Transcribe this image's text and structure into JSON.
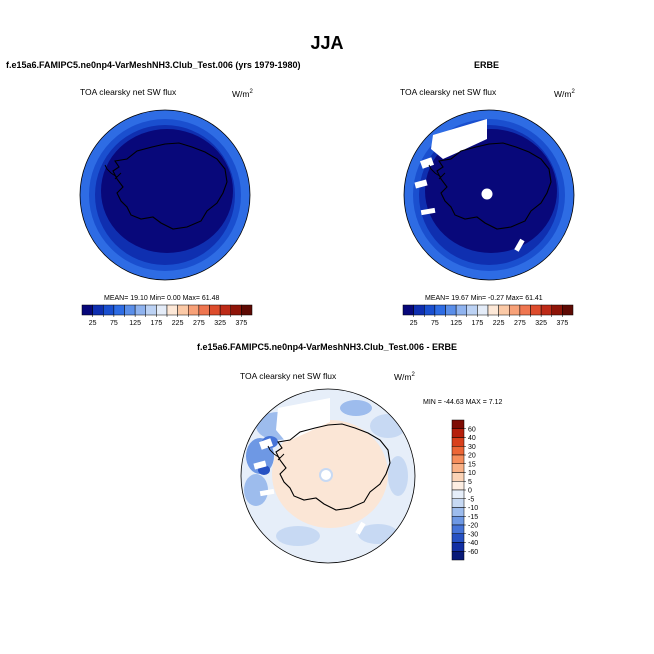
{
  "page": {
    "main_title": "JJA",
    "left_title": "f.e15a6.FAMIPC5.ne0np4-VarMeshNH3.Club_Test.006 (yrs 1979-1980)",
    "right_title": "ERBE",
    "diff_title": "f.e15a6.FAMIPC5.ne0np4-VarMeshNH3.Club_Test.006 - ERBE"
  },
  "chart_data": [
    {
      "type": "heatmap",
      "panel": "model",
      "title": "TOA clearsky net SW flux",
      "units_base": "W/m",
      "units_sup": "2",
      "stats_text": "MEAN=  19.10  Min=   0.00  Max=  61.48",
      "stats": {
        "mean": 19.1,
        "min": 0.0,
        "max": 61.48
      },
      "colorbar": {
        "orientation": "horizontal",
        "tick_labels": [
          "25",
          "75",
          "125",
          "175",
          "225",
          "275",
          "325",
          "375"
        ],
        "levels": [
          25,
          50,
          75,
          100,
          125,
          150,
          175,
          200,
          225,
          250,
          275,
          300,
          325,
          350,
          375
        ],
        "colors": [
          "#08087a",
          "#0f2fb0",
          "#1a4fcf",
          "#2e6ce4",
          "#5a8ee9",
          "#8fb3ef",
          "#bcd2f4",
          "#e4ecf8",
          "#fde8d7",
          "#fbc9a6",
          "#f7a178",
          "#ef7650",
          "#dd4c2c",
          "#bd2a17",
          "#8e1408",
          "#5e0a04"
        ]
      }
    },
    {
      "type": "heatmap",
      "panel": "obs",
      "title": "TOA clearsky net SW flux",
      "units_base": "W/m",
      "units_sup": "2",
      "stats_text": "MEAN=  19.67  Min=  -0.27  Max=  61.41",
      "stats": {
        "mean": 19.67,
        "min": -0.27,
        "max": 61.41
      },
      "colorbar": {
        "orientation": "horizontal",
        "tick_labels": [
          "25",
          "75",
          "125",
          "175",
          "225",
          "275",
          "325",
          "375"
        ],
        "levels": [
          25,
          50,
          75,
          100,
          125,
          150,
          175,
          200,
          225,
          250,
          275,
          300,
          325,
          350,
          375
        ],
        "colors": [
          "#08087a",
          "#0f2fb0",
          "#1a4fcf",
          "#2e6ce4",
          "#5a8ee9",
          "#8fb3ef",
          "#bcd2f4",
          "#e4ecf8",
          "#fde8d7",
          "#fbc9a6",
          "#f7a178",
          "#ef7650",
          "#dd4c2c",
          "#bd2a17",
          "#8e1408",
          "#5e0a04"
        ]
      }
    },
    {
      "type": "heatmap",
      "panel": "difference",
      "title": "TOA clearsky net SW flux",
      "units_base": "W/m",
      "units_sup": "2",
      "stats_text": "MIN = -44.63 MAX =   7.12",
      "stats": {
        "min": -44.63,
        "max": 7.12
      },
      "colorbar": {
        "orientation": "vertical",
        "tick_labels": [
          "60",
          "40",
          "30",
          "20",
          "15",
          "10",
          "5",
          "0",
          "-5",
          "-10",
          "-15",
          "-20",
          "-30",
          "-40",
          "-60"
        ],
        "colors": [
          "#7e0c04",
          "#b51f0c",
          "#d8401c",
          "#ec6636",
          "#f68e5c",
          "#f9b186",
          "#fbd3b6",
          "#fdeee2",
          "#e6eef9",
          "#c7d9f3",
          "#9dbced",
          "#6e98e4",
          "#4674d8",
          "#2651c3",
          "#122fa3",
          "#081a78"
        ]
      }
    }
  ]
}
